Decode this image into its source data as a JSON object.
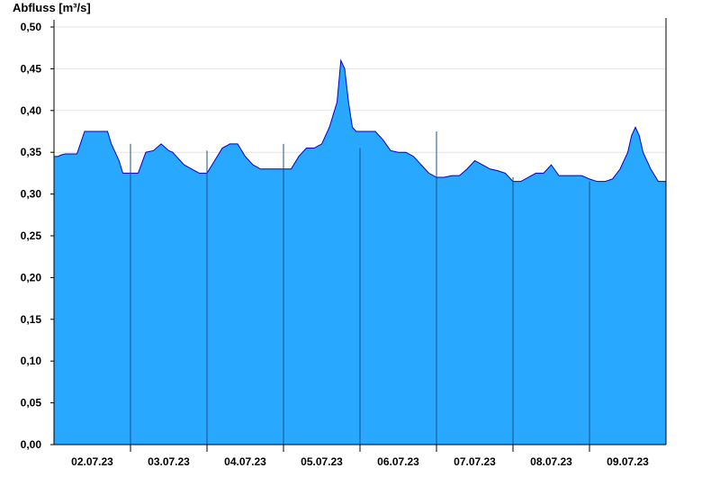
{
  "chart_data": {
    "type": "area",
    "ylabel": "Abfluss [m³/s]",
    "xlabel": "",
    "title": "",
    "ylim": [
      0,
      0.5
    ],
    "y_ticks": [
      "0,00",
      "0,05",
      "0,10",
      "0,15",
      "0,20",
      "0,25",
      "0,30",
      "0,35",
      "0,40",
      "0,45",
      "0,50"
    ],
    "x_tick_labels": [
      "02.07.23",
      "03.07.23",
      "04.07.23",
      "05.07.23",
      "06.07.23",
      "07.07.23",
      "08.07.23",
      "09.07.23"
    ],
    "x_range_days": [
      0,
      8
    ],
    "grid": "horizontal",
    "fill_color": "#29a8ff",
    "line_color": "#0000cc",
    "series": [
      {
        "x": [
          0,
          0.05,
          0.1,
          0.15,
          0.2,
          0.3,
          0.4,
          0.5,
          0.6,
          0.7,
          0.75,
          0.8,
          0.85,
          0.9,
          0.95,
          1.0,
          1.1,
          1.2,
          1.3,
          1.4,
          1.5,
          1.55,
          1.6,
          1.7,
          1.8,
          1.9,
          2.0,
          2.1,
          2.2,
          2.3,
          2.4,
          2.5,
          2.6,
          2.7,
          2.8,
          2.9,
          3.0,
          3.1,
          3.2,
          3.3,
          3.4,
          3.5,
          3.6,
          3.7,
          3.75,
          3.8,
          3.85,
          3.9,
          3.95,
          4.0,
          4.1,
          4.2,
          4.3,
          4.4,
          4.5,
          4.6,
          4.7,
          4.8,
          4.9,
          5.0,
          5.1,
          5.2,
          5.3,
          5.4,
          5.5,
          5.6,
          5.7,
          5.8,
          5.9,
          6.0,
          6.1,
          6.2,
          6.3,
          6.4,
          6.5,
          6.6,
          6.7,
          6.8,
          6.9,
          7.0,
          7.1,
          7.2,
          7.3,
          7.4,
          7.5,
          7.55,
          7.6,
          7.65,
          7.7,
          7.8,
          7.9,
          8.0
        ],
        "values": [
          0.345,
          0.345,
          0.347,
          0.348,
          0.348,
          0.348,
          0.375,
          0.375,
          0.375,
          0.375,
          0.36,
          0.35,
          0.34,
          0.325,
          0.325,
          0.325,
          0.325,
          0.35,
          0.352,
          0.36,
          0.352,
          0.35,
          0.345,
          0.335,
          0.33,
          0.325,
          0.325,
          0.34,
          0.355,
          0.36,
          0.36,
          0.345,
          0.335,
          0.33,
          0.33,
          0.33,
          0.33,
          0.33,
          0.345,
          0.355,
          0.355,
          0.36,
          0.38,
          0.41,
          0.46,
          0.45,
          0.41,
          0.38,
          0.375,
          0.375,
          0.375,
          0.375,
          0.365,
          0.352,
          0.35,
          0.35,
          0.345,
          0.335,
          0.325,
          0.32,
          0.32,
          0.322,
          0.322,
          0.33,
          0.34,
          0.335,
          0.33,
          0.328,
          0.325,
          0.315,
          0.315,
          0.32,
          0.325,
          0.325,
          0.335,
          0.322,
          0.322,
          0.322,
          0.322,
          0.318,
          0.315,
          0.315,
          0.318,
          0.33,
          0.35,
          0.37,
          0.38,
          0.37,
          0.35,
          0.33,
          0.315,
          0.315
        ]
      }
    ]
  }
}
